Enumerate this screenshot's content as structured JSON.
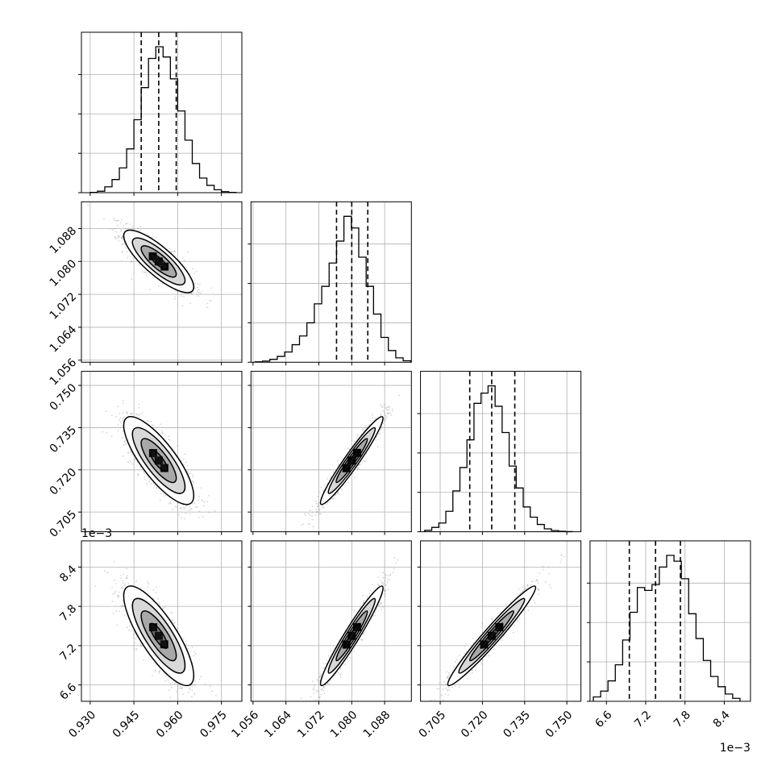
{
  "chart_data": {
    "type": "corner",
    "parameters": 4,
    "grid": true,
    "colors": {
      "line": "#000000",
      "grid": "#b0b0b0",
      "scatter": "#888888"
    },
    "axes": [
      {
        "range": [
          0.927,
          0.982
        ],
        "ticks": [
          0.93,
          0.945,
          0.96,
          0.975
        ],
        "tick_labels": [
          "0.930",
          "0.945",
          "0.960",
          "0.975"
        ],
        "offset": ""
      },
      {
        "range": [
          1.0555,
          1.0945
        ],
        "ticks": [
          1.056,
          1.064,
          1.072,
          1.08,
          1.088
        ],
        "tick_labels": [
          "1.056",
          "1.064",
          "1.072",
          "1.080",
          "1.088"
        ],
        "offset": ""
      },
      {
        "range": [
          0.698,
          0.755
        ],
        "ticks": [
          0.705,
          0.72,
          0.735,
          0.75
        ],
        "tick_labels": [
          "0.705",
          "0.720",
          "0.735",
          "0.750"
        ],
        "offset": ""
      },
      {
        "range": [
          6.35,
          8.8
        ],
        "ticks": [
          6.6,
          7.2,
          7.8,
          8.4
        ],
        "tick_labels": [
          "6.6",
          "7.2",
          "7.8",
          "8.4"
        ],
        "offset": "1e−3"
      }
    ],
    "quantiles": [
      [
        0.9475,
        0.9535,
        0.9595
      ],
      [
        1.0763,
        1.08,
        1.0839
      ],
      [
        0.7155,
        0.7233,
        0.7315
      ],
      [
        6.95,
        7.35,
        7.73
      ]
    ],
    "histograms": [
      {
        "bin_start": 0.93,
        "bin_width": 0.0025,
        "heights": [
          0.002,
          0.01,
          0.04,
          0.09,
          0.17,
          0.3,
          0.5,
          0.72,
          0.92,
          1.0,
          0.93,
          0.78,
          0.56,
          0.36,
          0.2,
          0.1,
          0.05,
          0.02,
          0.007,
          0.002
        ]
      },
      {
        "bin_start": 1.0565,
        "bin_width": 0.0018,
        "heights": [
          0.003,
          0.008,
          0.02,
          0.04,
          0.07,
          0.12,
          0.18,
          0.27,
          0.4,
          0.52,
          0.68,
          0.83,
          1.0,
          0.92,
          0.72,
          0.52,
          0.33,
          0.17,
          0.08,
          0.03,
          0.01
        ]
      },
      {
        "bin_start": 0.6995,
        "bin_width": 0.0025,
        "heights": [
          0.01,
          0.03,
          0.06,
          0.14,
          0.28,
          0.44,
          0.63,
          0.88,
          0.95,
          1.0,
          0.86,
          0.68,
          0.45,
          0.3,
          0.17,
          0.1,
          0.05,
          0.02,
          0.008,
          0.003,
          0.001
        ]
      },
      {
        "bin_start": 6.4,
        "bin_width": 0.112,
        "heights": [
          0.03,
          0.07,
          0.14,
          0.25,
          0.42,
          0.61,
          0.78,
          0.76,
          0.8,
          0.92,
          1.0,
          0.96,
          0.84,
          0.6,
          0.43,
          0.28,
          0.17,
          0.1,
          0.05,
          0.02
        ]
      }
    ],
    "pairs": [
      {
        "row": 1,
        "col": 0,
        "mean": [
          0.9535,
          1.08
        ],
        "sd": [
          0.006,
          0.0038
        ],
        "corr": -0.82
      },
      {
        "row": 2,
        "col": 0,
        "mean": [
          0.9535,
          0.7233
        ],
        "sd": [
          0.006,
          0.0078
        ],
        "corr": -0.8
      },
      {
        "row": 2,
        "col": 1,
        "mean": [
          1.08,
          0.7233
        ],
        "sd": [
          0.0038,
          0.0078
        ],
        "corr": 0.96
      },
      {
        "row": 3,
        "col": 0,
        "mean": [
          0.9535,
          7.35
        ],
        "sd": [
          0.006,
          0.38
        ],
        "corr": -0.8
      },
      {
        "row": 3,
        "col": 1,
        "mean": [
          1.08,
          7.35
        ],
        "sd": [
          0.0038,
          0.38
        ],
        "corr": 0.96
      },
      {
        "row": 3,
        "col": 2,
        "mean": [
          0.7233,
          7.35
        ],
        "sd": [
          0.0078,
          0.38
        ],
        "corr": 0.97
      }
    ],
    "contour_levels": [
      0.5,
      1.0,
      1.5,
      2.0
    ]
  }
}
